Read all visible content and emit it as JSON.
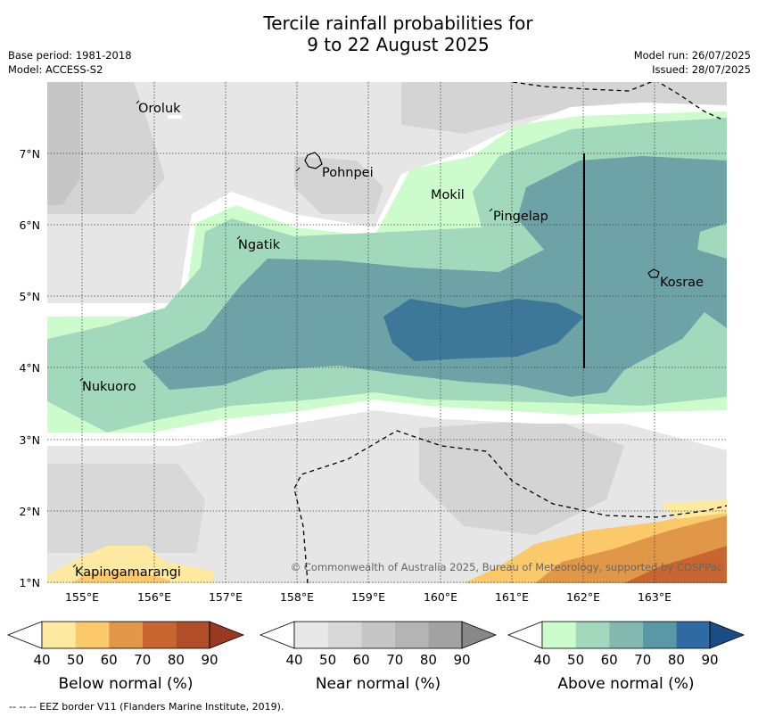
{
  "title": {
    "line1": "Tercile rainfall probabilities for",
    "line2": "9 to 22 August 2025"
  },
  "meta_left": {
    "base_period": "Base period: 1981-2018",
    "model": "Model: ACCESS-S2"
  },
  "meta_right": {
    "model_run": "Model run: 26/07/2025",
    "issued": "Issued: 28/07/2025"
  },
  "map": {
    "lon_ticks": [
      "155°E",
      "156°E",
      "157°E",
      "158°E",
      "159°E",
      "160°E",
      "161°E",
      "162°E",
      "163°E"
    ],
    "lat_ticks": [
      "1°N",
      "2°N",
      "3°N",
      "4°N",
      "5°N",
      "6°N",
      "7°N"
    ],
    "places": [
      {
        "name": "Oroluk"
      },
      {
        "name": "Pohnpei"
      },
      {
        "name": "Mokil"
      },
      {
        "name": "Pingelap"
      },
      {
        "name": "Ngatik"
      },
      {
        "name": "Kosrae"
      },
      {
        "name": "Nukuoro"
      },
      {
        "name": "Kapingamarangi"
      }
    ],
    "copyright": "© Commonwealth of Australia 2025, Bureau of Meteorology, supported by COSPPac"
  },
  "legends": [
    {
      "label": "Below normal (%)",
      "ticks": [
        "40",
        "50",
        "60",
        "70",
        "80",
        "90"
      ],
      "colors": [
        "#fde9a0",
        "#fbc96a",
        "#e09848",
        "#c96530",
        "#b04e2a",
        "#983a22"
      ]
    },
    {
      "label": "Near normal (%)",
      "ticks": [
        "40",
        "50",
        "60",
        "70",
        "80",
        "90"
      ],
      "colors": [
        "#e8e8e8",
        "#d8d8d8",
        "#c6c6c6",
        "#b4b4b4",
        "#a2a2a2",
        "#888888"
      ]
    },
    {
      "label": "Above normal (%)",
      "ticks": [
        "40",
        "50",
        "60",
        "70",
        "80",
        "90"
      ],
      "colors": [
        "#ccfccc",
        "#a2d8bc",
        "#82b8ae",
        "#5a98a6",
        "#2f6aa2",
        "#1a4c86"
      ]
    }
  ],
  "eez_note": "--  --  -- EEZ border V11 (Flanders Marine Institute, 2019)."
}
